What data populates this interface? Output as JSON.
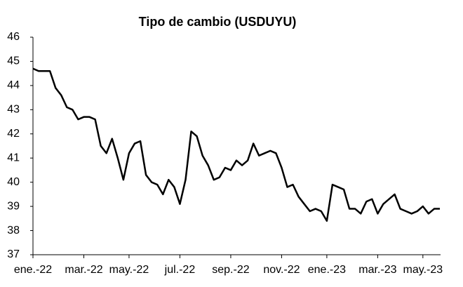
{
  "chart_data": {
    "type": "line",
    "title": "Tipo de cambio (USDUYU)",
    "categories": [
      "ene.-22",
      null,
      null,
      null,
      null,
      null,
      null,
      null,
      null,
      "mar.-22",
      null,
      null,
      null,
      null,
      null,
      null,
      null,
      "may.-22",
      null,
      null,
      null,
      null,
      null,
      null,
      null,
      null,
      "jul.-22",
      null,
      null,
      null,
      null,
      null,
      null,
      null,
      null,
      "sep.-22",
      null,
      null,
      null,
      null,
      null,
      null,
      null,
      null,
      "nov.-22",
      null,
      null,
      null,
      null,
      null,
      null,
      null,
      "ene.-23",
      null,
      null,
      null,
      null,
      null,
      null,
      null,
      null,
      "mar.-23",
      null,
      null,
      null,
      null,
      null,
      null,
      null,
      "may.-23",
      null,
      null,
      null
    ],
    "values": [
      44.7,
      44.6,
      44.6,
      44.6,
      43.9,
      43.6,
      43.1,
      43.0,
      42.6,
      42.7,
      42.7,
      42.6,
      41.5,
      41.2,
      41.8,
      41.0,
      40.1,
      41.2,
      41.6,
      41.7,
      40.3,
      40.0,
      39.9,
      39.5,
      40.1,
      39.8,
      39.1,
      40.1,
      42.1,
      41.9,
      41.1,
      40.7,
      40.1,
      40.2,
      40.6,
      40.5,
      40.9,
      40.7,
      40.9,
      41.6,
      41.1,
      41.2,
      41.3,
      41.2,
      40.6,
      39.8,
      39.9,
      39.4,
      39.1,
      38.8,
      38.9,
      38.8,
      38.4,
      39.9,
      39.8,
      39.7,
      38.9,
      38.9,
      38.7,
      39.2,
      39.3,
      38.7,
      39.1,
      39.3,
      39.5,
      38.9,
      38.8,
      38.7,
      38.8,
      39.0,
      38.7,
      38.9,
      38.9
    ],
    "color": "#000000",
    "ylim": [
      37,
      46
    ],
    "yticks": [
      37,
      38,
      39,
      40,
      41,
      42,
      43,
      44,
      45,
      46
    ],
    "grid": false
  }
}
